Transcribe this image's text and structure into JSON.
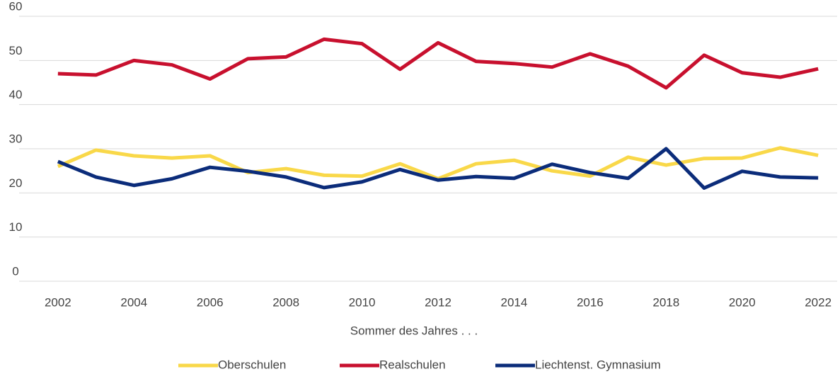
{
  "chart_data": {
    "type": "line",
    "x_label": "Sommer des Jahres  . . .",
    "x": [
      2002,
      2003,
      2004,
      2005,
      2006,
      2007,
      2008,
      2009,
      2010,
      2011,
      2012,
      2013,
      2014,
      2015,
      2016,
      2017,
      2018,
      2019,
      2020,
      2021,
      2022
    ],
    "series": [
      {
        "name": "Oberschulen",
        "color": "#f9d849",
        "values": [
          26,
          29.7,
          28.4,
          27.9,
          28.4,
          24.6,
          25.5,
          24,
          23.8,
          26.6,
          23.2,
          26.6,
          27.4,
          25,
          23.8,
          28.1,
          26.3,
          27.8,
          27.9,
          30.2,
          28.5
        ]
      },
      {
        "name": "Realschulen",
        "color": "#c8102e",
        "values": [
          47,
          46.7,
          50,
          49,
          45.8,
          50.4,
          50.8,
          54.8,
          53.8,
          48,
          54,
          49.8,
          49.3,
          48.5,
          51.5,
          48.7,
          43.8,
          51.2,
          47.2,
          46.2,
          48.1
        ]
      },
      {
        "name": "Liechtenst. Gymnasium",
        "color": "#0b2c7a",
        "values": [
          27.1,
          23.6,
          21.7,
          23.2,
          25.8,
          24.9,
          23.6,
          21.2,
          22.5,
          25.3,
          22.9,
          23.7,
          23.3,
          26.5,
          24.6,
          23.3,
          30,
          21.1,
          24.9,
          23.6,
          23.4
        ]
      }
    ],
    "xlim": [
      2001.5,
      2022.5
    ],
    "xticks": [
      2002,
      2004,
      2006,
      2008,
      2010,
      2012,
      2014,
      2016,
      2018,
      2020,
      2022
    ],
    "ylim": [
      0,
      60
    ],
    "yticks": [
      0,
      10,
      20,
      30,
      40,
      50,
      60
    ],
    "grid": true,
    "legend": "bottom"
  }
}
